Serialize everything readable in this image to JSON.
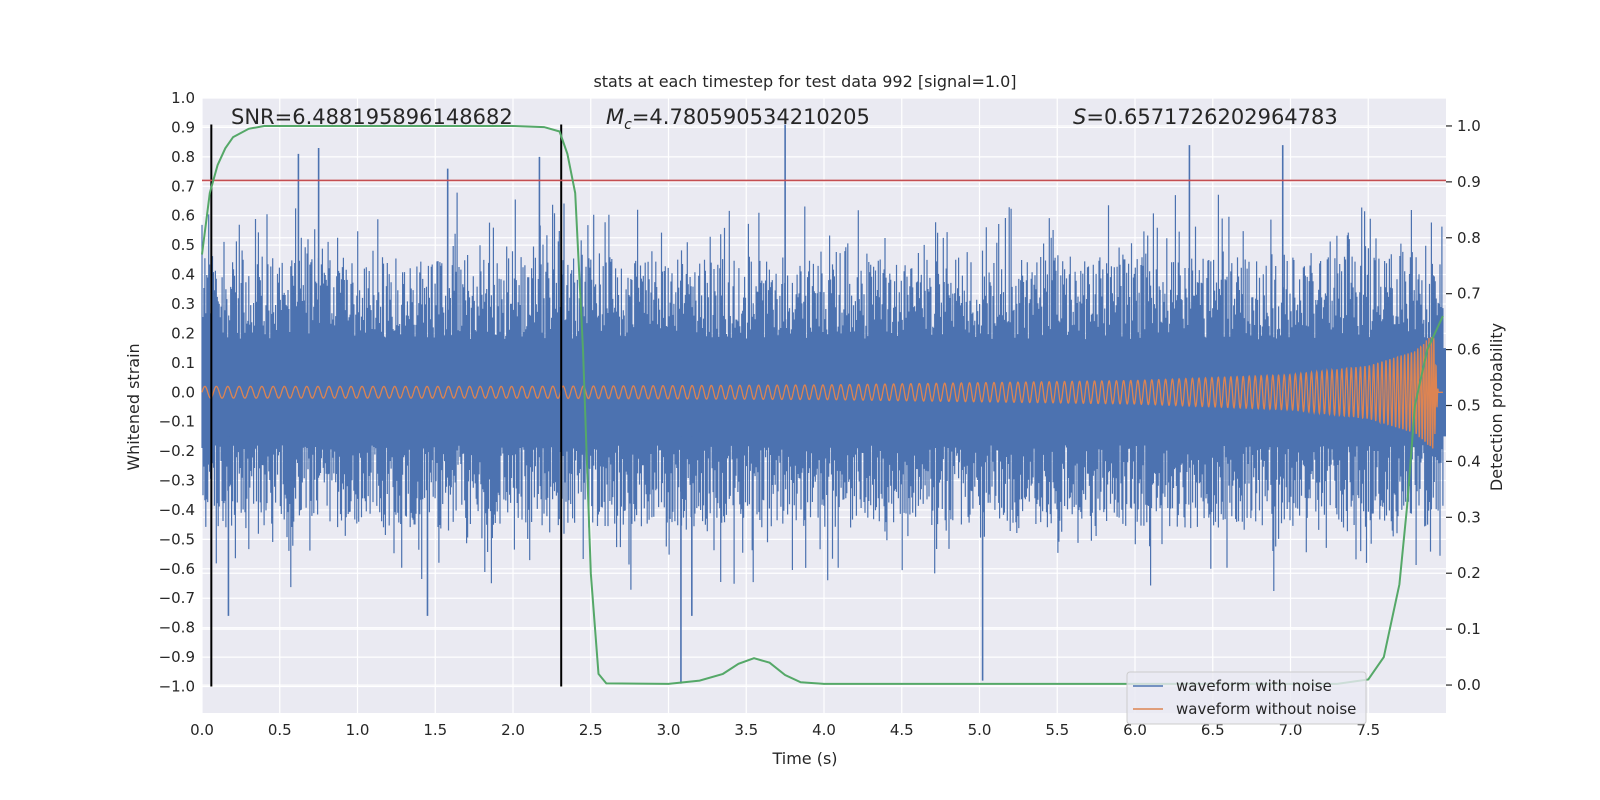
{
  "colors": {
    "background": "#eaeaf2",
    "grid": "#ffffff",
    "noisy": "#4c72b0",
    "clean": "#dd8452",
    "probability": "#55a868",
    "threshold": "#c44e52",
    "markers": "#000000"
  },
  "chart_data": {
    "type": "line",
    "title": "stats at each timestep for test data 992 [signal=1.0]",
    "xlabel": "Time (s)",
    "ylabel": "Whitened strain",
    "y2label": "Detection probability",
    "xlim": [
      0.0,
      8.0
    ],
    "ylim": [
      -1.09,
      1.0
    ],
    "y2lim": [
      -0.05,
      1.05
    ],
    "xticks": [
      0.0,
      0.5,
      1.0,
      1.5,
      2.0,
      2.5,
      3.0,
      3.5,
      4.0,
      4.5,
      5.0,
      5.5,
      6.0,
      6.5,
      7.0,
      7.5
    ],
    "xtick_labels": [
      "0.0",
      "0.5",
      "1.0",
      "1.5",
      "2.0",
      "2.5",
      "3.0",
      "3.5",
      "4.0",
      "4.5",
      "5.0",
      "5.5",
      "6.0",
      "6.5",
      "7.0",
      "7.5"
    ],
    "yticks": [
      1.0,
      0.9,
      0.8,
      0.7,
      0.6,
      0.5,
      0.4,
      0.3,
      0.2,
      0.1,
      0.0,
      -0.1,
      -0.2,
      -0.3,
      -0.4,
      -0.5,
      -0.6,
      -0.7,
      -0.8,
      -0.9,
      -1.0
    ],
    "ytick_labels": [
      "1.0",
      "0.9",
      "0.8",
      "0.7",
      "0.6",
      "0.5",
      "0.4",
      "0.3",
      "0.2",
      "0.1",
      "0.0",
      "−0.1",
      "−0.2",
      "−0.3",
      "−0.4",
      "−0.5",
      "−0.6",
      "−0.7",
      "−0.8",
      "−0.9",
      "−1.0"
    ],
    "y2ticks": [
      1.0,
      0.9,
      0.8,
      0.7,
      0.6,
      0.5,
      0.4,
      0.3,
      0.2,
      0.1,
      0.0
    ],
    "y2tick_labels": [
      "1.0",
      "0.9",
      "0.8",
      "0.7",
      "0.6",
      "0.5",
      "0.4",
      "0.3",
      "0.2",
      "0.1",
      "0.0"
    ],
    "annotations": {
      "snr_label": "SNR=6.488195896148682",
      "mc_symbol": "M",
      "mc_subscript": "c",
      "mc_value": "=4.780590534210205",
      "s_symbol": "S",
      "s_value": "=0.6571726202964783"
    },
    "threshold_y": 0.72,
    "vlines_x": [
      0.06,
      2.31
    ],
    "series": [
      {
        "name": "waveform with noise",
        "axis": "left",
        "description": "broadband noise, spikes mostly within [-0.8, 0.9]",
        "peaks": [
          {
            "x": 0.62,
            "y": 0.81
          },
          {
            "x": 0.75,
            "y": 0.83
          },
          {
            "x": 1.58,
            "y": 0.76
          },
          {
            "x": 2.17,
            "y": 0.8
          },
          {
            "x": 3.75,
            "y": 0.91
          },
          {
            "x": 6.35,
            "y": 0.84
          },
          {
            "x": 6.95,
            "y": 0.84
          },
          {
            "x": 3.08,
            "y": -0.99
          },
          {
            "x": 5.02,
            "y": -0.98
          },
          {
            "x": 0.17,
            "y": -0.76
          },
          {
            "x": 1.45,
            "y": -0.76
          },
          {
            "x": 3.15,
            "y": -0.76
          }
        ]
      },
      {
        "name": "waveform without noise",
        "axis": "left",
        "description": "chirp with growing amplitude and frequency, merging near 7.9 s",
        "points": [
          {
            "x": 0.0,
            "y": 0.02
          },
          {
            "x": 2.0,
            "y": 0.02
          },
          {
            "x": 4.0,
            "y": 0.025
          },
          {
            "x": 6.0,
            "y": 0.04
          },
          {
            "x": 7.0,
            "y": 0.06
          },
          {
            "x": 7.5,
            "y": 0.09
          },
          {
            "x": 7.8,
            "y": 0.14
          },
          {
            "x": 7.92,
            "y": 0.2
          },
          {
            "x": 7.95,
            "y": 0.0
          }
        ]
      },
      {
        "name": "detection probability",
        "axis": "right",
        "points": [
          {
            "x": 0.0,
            "y": 0.77
          },
          {
            "x": 0.05,
            "y": 0.88
          },
          {
            "x": 0.1,
            "y": 0.93
          },
          {
            "x": 0.15,
            "y": 0.96
          },
          {
            "x": 0.2,
            "y": 0.98
          },
          {
            "x": 0.3,
            "y": 0.995
          },
          {
            "x": 0.4,
            "y": 1.0
          },
          {
            "x": 2.0,
            "y": 1.0
          },
          {
            "x": 2.2,
            "y": 0.998
          },
          {
            "x": 2.3,
            "y": 0.99
          },
          {
            "x": 2.35,
            "y": 0.95
          },
          {
            "x": 2.4,
            "y": 0.88
          },
          {
            "x": 2.45,
            "y": 0.6
          },
          {
            "x": 2.5,
            "y": 0.2
          },
          {
            "x": 2.55,
            "y": 0.02
          },
          {
            "x": 2.6,
            "y": 0.003
          },
          {
            "x": 3.0,
            "y": 0.002
          },
          {
            "x": 3.2,
            "y": 0.008
          },
          {
            "x": 3.35,
            "y": 0.02
          },
          {
            "x": 3.45,
            "y": 0.038
          },
          {
            "x": 3.55,
            "y": 0.048
          },
          {
            "x": 3.65,
            "y": 0.04
          },
          {
            "x": 3.75,
            "y": 0.018
          },
          {
            "x": 3.85,
            "y": 0.005
          },
          {
            "x": 4.0,
            "y": 0.002
          },
          {
            "x": 7.3,
            "y": 0.002
          },
          {
            "x": 7.5,
            "y": 0.01
          },
          {
            "x": 7.6,
            "y": 0.05
          },
          {
            "x": 7.7,
            "y": 0.18
          },
          {
            "x": 7.75,
            "y": 0.32
          },
          {
            "x": 7.8,
            "y": 0.5
          },
          {
            "x": 7.88,
            "y": 0.6
          },
          {
            "x": 7.98,
            "y": 0.66
          }
        ]
      },
      {
        "name": "threshold",
        "axis": "left",
        "points": [
          {
            "x": 0.0,
            "y": 0.72
          },
          {
            "x": 8.0,
            "y": 0.72
          }
        ]
      }
    ],
    "legend": {
      "placement": "lower-right",
      "entries": [
        "waveform with noise",
        "waveform without noise"
      ]
    }
  }
}
